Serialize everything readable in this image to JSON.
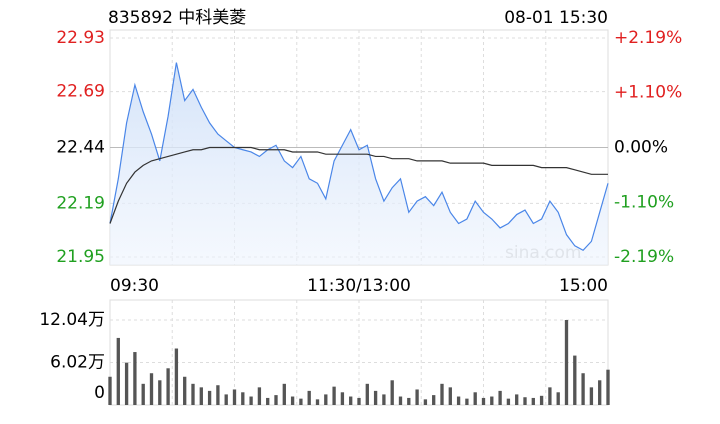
{
  "chart_data": [
    {
      "type": "line",
      "title": "835892 中科美菱",
      "subtitle": "08-01 15:30",
      "watermark": "sina.com",
      "x": [
        "09:30",
        "09:34",
        "09:38",
        "09:42",
        "09:46",
        "09:50",
        "09:54",
        "09:58",
        "10:02",
        "10:06",
        "10:10",
        "10:14",
        "10:18",
        "10:22",
        "10:26",
        "10:30",
        "10:34",
        "10:38",
        "10:42",
        "10:46",
        "10:50",
        "10:54",
        "10:58",
        "11:02",
        "11:06",
        "11:10",
        "11:14",
        "11:18",
        "11:22",
        "11:26",
        "11:30",
        "13:04",
        "13:08",
        "13:12",
        "13:16",
        "13:20",
        "13:24",
        "13:28",
        "13:32",
        "13:36",
        "13:40",
        "13:44",
        "13:48",
        "13:52",
        "13:56",
        "14:00",
        "14:04",
        "14:08",
        "14:12",
        "14:16",
        "14:20",
        "14:24",
        "14:28",
        "14:32",
        "14:36",
        "14:40",
        "14:44",
        "14:48",
        "14:52",
        "14:56",
        "15:00"
      ],
      "xticks": [
        "09:30",
        "11:30/13:00",
        "15:00"
      ],
      "series": [
        {
          "name": "price",
          "color": "#4a86e8",
          "values": [
            22.1,
            22.3,
            22.55,
            22.72,
            22.6,
            22.5,
            22.38,
            22.58,
            22.82,
            22.65,
            22.7,
            22.62,
            22.55,
            22.5,
            22.47,
            22.44,
            22.43,
            22.42,
            22.4,
            22.43,
            22.45,
            22.38,
            22.35,
            22.4,
            22.3,
            22.28,
            22.21,
            22.38,
            22.45,
            22.52,
            22.43,
            22.45,
            22.3,
            22.2,
            22.26,
            22.3,
            22.15,
            22.2,
            22.22,
            22.18,
            22.24,
            22.15,
            22.1,
            22.12,
            22.2,
            22.15,
            22.12,
            22.08,
            22.1,
            22.14,
            22.16,
            22.1,
            22.12,
            22.2,
            22.15,
            22.05,
            22.0,
            21.98,
            22.02,
            22.15,
            22.28
          ]
        },
        {
          "name": "average",
          "color": "#333333",
          "values": [
            22.1,
            22.2,
            22.28,
            22.33,
            22.36,
            22.38,
            22.39,
            22.4,
            22.41,
            22.42,
            22.43,
            22.43,
            22.44,
            22.44,
            22.44,
            22.44,
            22.44,
            22.44,
            22.43,
            22.43,
            22.43,
            22.43,
            22.42,
            22.42,
            22.42,
            22.42,
            22.41,
            22.41,
            22.41,
            22.41,
            22.41,
            22.41,
            22.4,
            22.4,
            22.39,
            22.39,
            22.39,
            22.38,
            22.38,
            22.38,
            22.38,
            22.37,
            22.37,
            22.37,
            22.37,
            22.37,
            22.36,
            22.36,
            22.36,
            22.36,
            22.36,
            22.36,
            22.35,
            22.35,
            22.35,
            22.35,
            22.34,
            22.33,
            22.32,
            22.32,
            22.32
          ]
        }
      ],
      "ylim": [
        21.95,
        22.93
      ],
      "yticks": [
        21.95,
        22.19,
        22.44,
        22.69,
        22.93
      ],
      "y2lim": [
        -2.19,
        2.19
      ],
      "y2ticks": [
        {
          "value": -2.19,
          "label": "-2.19%"
        },
        {
          "value": -1.1,
          "label": "-1.10%"
        },
        {
          "value": 0,
          "label": "0.00%"
        },
        {
          "value": 1.1,
          "label": "+1.10%"
        },
        {
          "value": 2.19,
          "label": "+2.19%"
        }
      ],
      "up_color": "#e02020",
      "down_color": "#20a020",
      "flat_color": "#000000",
      "grid": true
    },
    {
      "type": "bar",
      "color": "#555555",
      "values": [
        40000,
        95000,
        60000,
        75000,
        30000,
        45000,
        35000,
        52000,
        80000,
        40000,
        30000,
        25000,
        20000,
        28000,
        15000,
        22000,
        18000,
        12000,
        25000,
        10000,
        14000,
        30000,
        12000,
        9000,
        20000,
        8000,
        15000,
        26000,
        18000,
        12000,
        10000,
        30000,
        20000,
        15000,
        35000,
        12000,
        10000,
        22000,
        8000,
        14000,
        30000,
        25000,
        12000,
        9000,
        18000,
        10000,
        12000,
        20000,
        9000,
        15000,
        11000,
        10000,
        13000,
        25000,
        18000,
        120400,
        70000,
        45000,
        25000,
        35000,
        50000
      ],
      "ylim": [
        0,
        120400
      ],
      "yticks": [
        {
          "value": 0,
          "label": "0"
        },
        {
          "value": 60200,
          "label": "6.02万"
        },
        {
          "value": 120400,
          "label": "12.04万"
        }
      ],
      "grid": true
    }
  ]
}
